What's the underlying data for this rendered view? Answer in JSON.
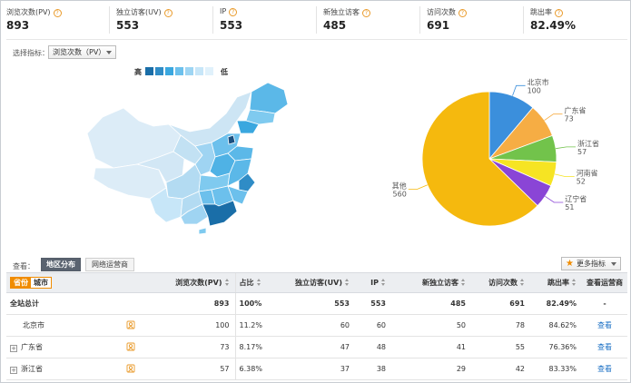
{
  "metrics": [
    {
      "label": "浏览次数(PV)",
      "value": "893"
    },
    {
      "label": "独立访客(UV)",
      "value": "553"
    },
    {
      "label": "IP",
      "value": "553"
    },
    {
      "label": "新独立访客",
      "value": "485"
    },
    {
      "label": "访问次数",
      "value": "691"
    },
    {
      "label": "跳出率",
      "value": "82.49%"
    }
  ],
  "indicator": {
    "label": "选择指标：",
    "selected": "浏览次数（PV）"
  },
  "legend": {
    "high": "高",
    "low": "低",
    "colors": [
      "#1a6ea8",
      "#2f8cc6",
      "#3aa7df",
      "#6cc0ec",
      "#9ed5f3",
      "#c7e6f8",
      "#e0f1fb"
    ]
  },
  "chart_data": {
    "type": "pie",
    "labels": [
      "北京市",
      "广东省",
      "浙江省",
      "河南省",
      "辽宁省",
      "其他"
    ],
    "values": [
      100,
      73,
      57,
      52,
      51,
      560
    ],
    "colors": [
      "#3b8fdc",
      "#f6ad44",
      "#72c34b",
      "#f6e423",
      "#8a45d6",
      "#f5b90e"
    ],
    "value_labels": [
      "100",
      "73",
      "57",
      "52",
      "51",
      "560"
    ]
  },
  "view": {
    "label": "查看：",
    "tabs": [
      "地区分布",
      "网络运营商"
    ],
    "more_button": "更多指标"
  },
  "table": {
    "toggle": [
      "省份",
      "城市"
    ],
    "headers": [
      "浏览次数(PV)",
      "占比",
      "独立访客(UV)",
      "IP",
      "新独立访客",
      "访问次数",
      "跳出率",
      "查看运营商"
    ],
    "rows": [
      {
        "name": "全站总计",
        "pv": "893",
        "ratio": "100%",
        "uv": "553",
        "ip": "553",
        "newuv": "485",
        "visits": "691",
        "bounce": "82.49%",
        "op": "-"
      },
      {
        "name": "北京市",
        "pv": "100",
        "ratio": "11.2%",
        "uv": "60",
        "ip": "60",
        "newuv": "50",
        "visits": "78",
        "bounce": "84.62%",
        "op": "查看"
      },
      {
        "name": "广东省",
        "pv": "73",
        "ratio": "8.17%",
        "uv": "47",
        "ip": "48",
        "newuv": "41",
        "visits": "55",
        "bounce": "76.36%",
        "op": "查看"
      },
      {
        "name": "浙江省",
        "pv": "57",
        "ratio": "6.38%",
        "uv": "37",
        "ip": "38",
        "newuv": "29",
        "visits": "42",
        "bounce": "83.33%",
        "op": "查看"
      }
    ]
  }
}
